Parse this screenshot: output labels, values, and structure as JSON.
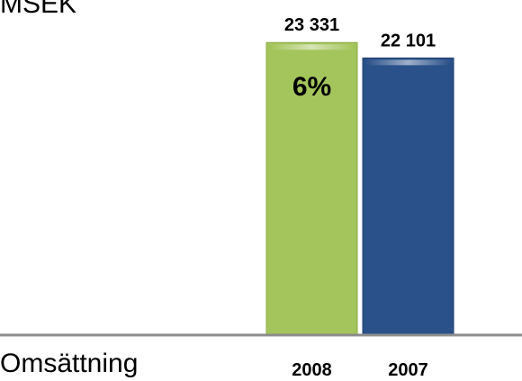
{
  "chart_data": {
    "type": "bar",
    "unit_label": "MSEK",
    "category_label": "Omsättning",
    "categories": [
      "2008",
      "2007"
    ],
    "values": [
      23331,
      22101
    ],
    "value_labels": [
      "23 331",
      "22 101"
    ],
    "change_label": "6%",
    "colors": [
      "#a4c55c",
      "#2a5189"
    ],
    "ylim": [
      0,
      25000
    ],
    "grid": false,
    "legend": "none"
  }
}
